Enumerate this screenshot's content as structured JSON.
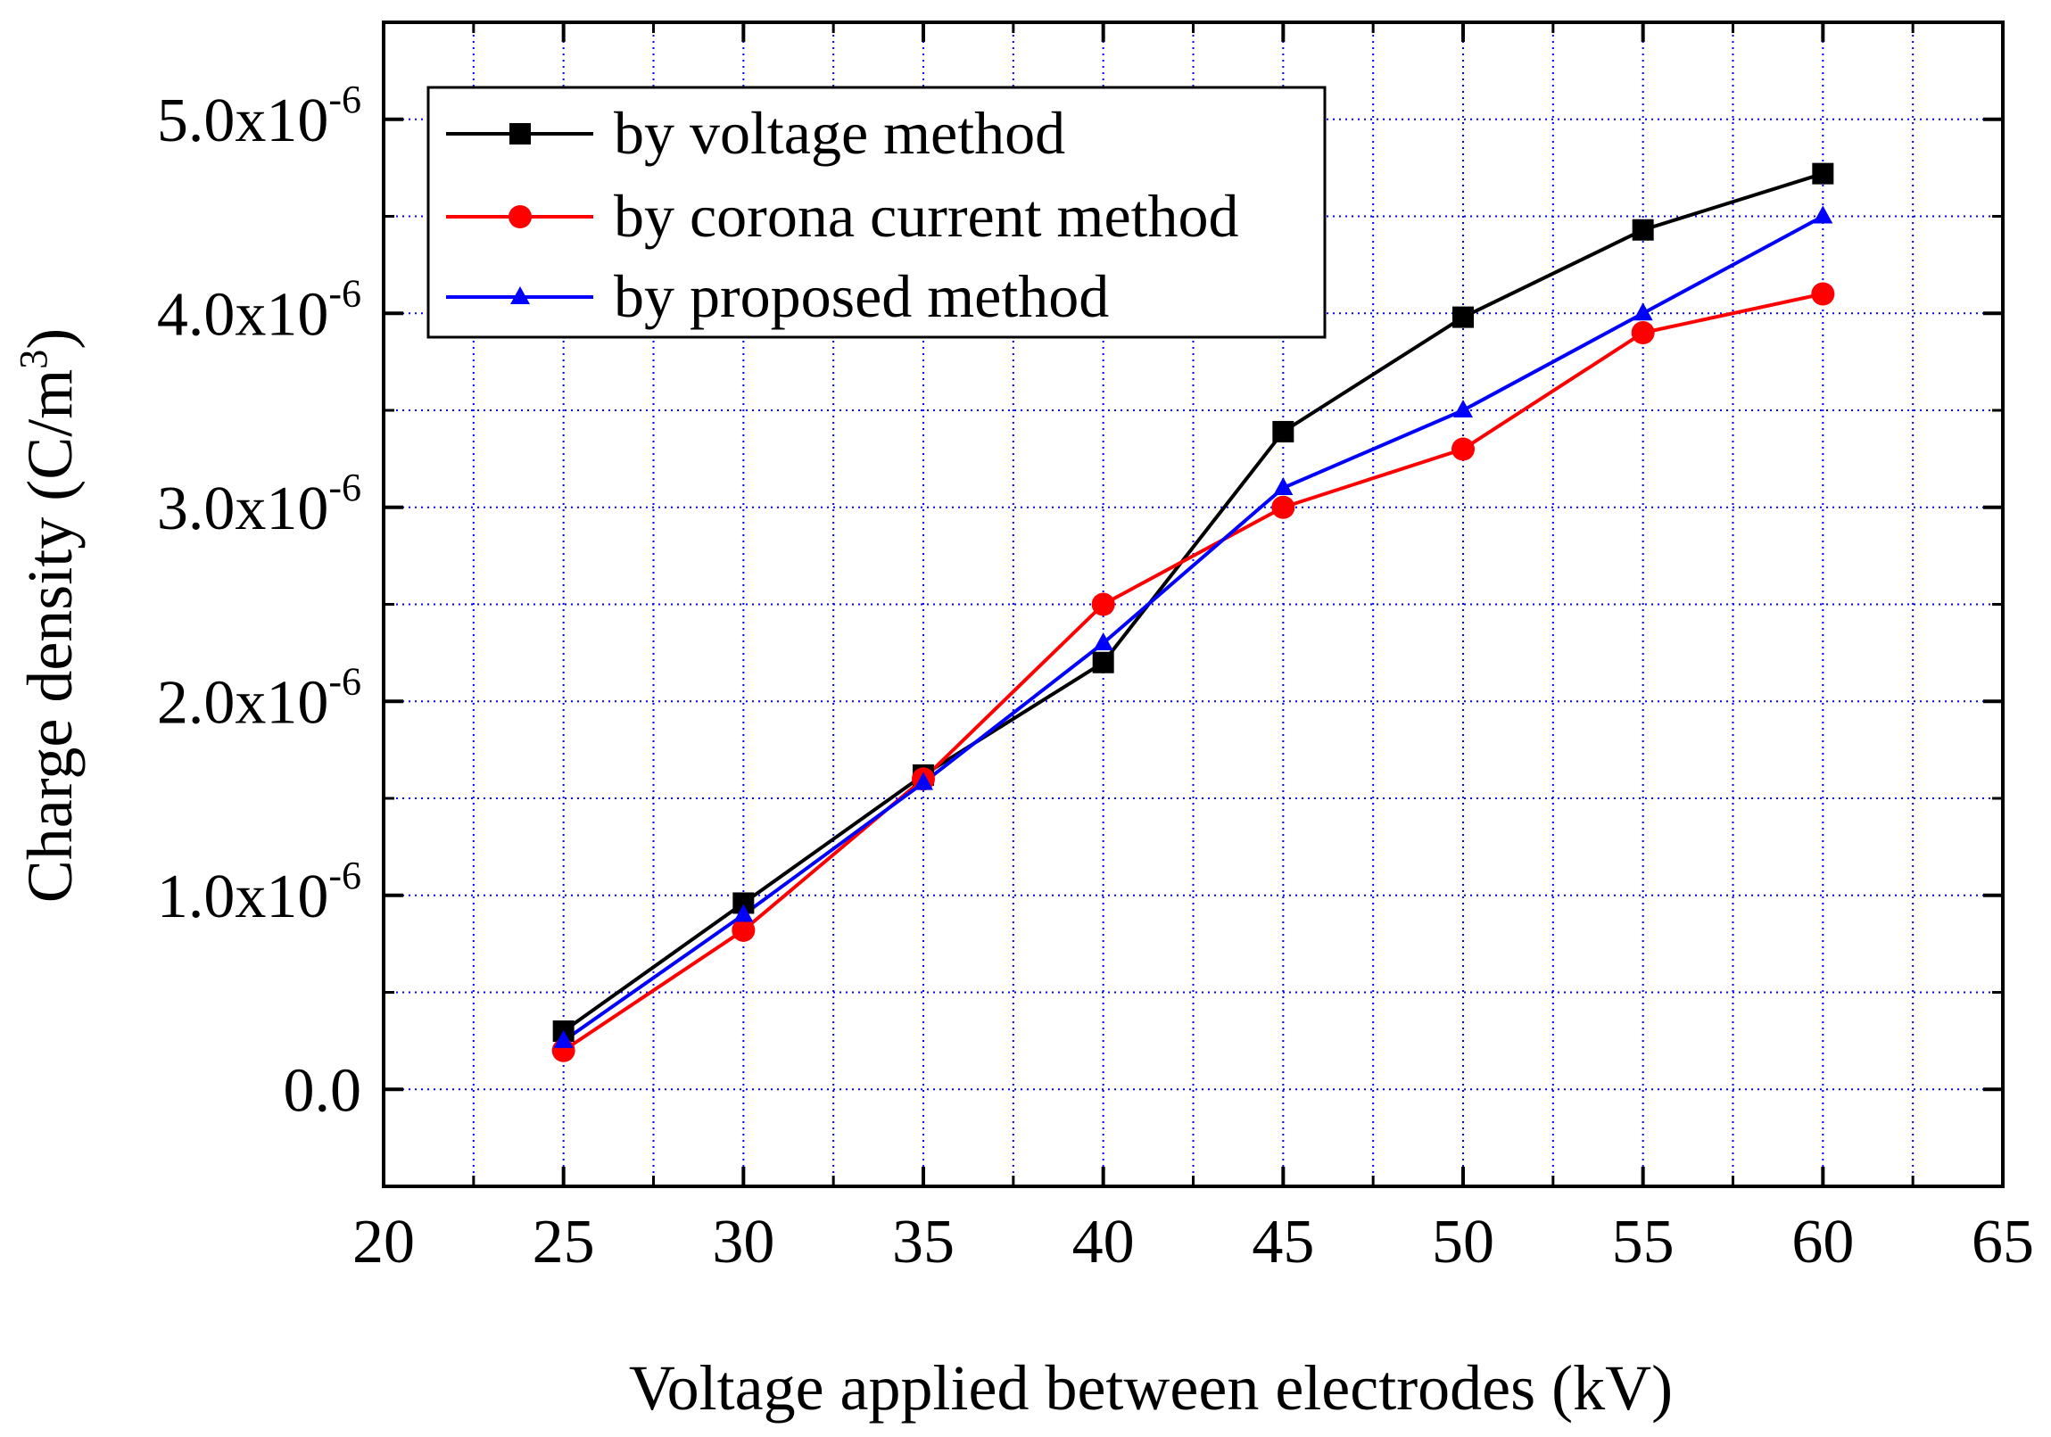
{
  "chart_data": {
    "type": "line",
    "xlabel": "Voltage applied between electrodes (kV)",
    "ylabel_main": "Charge density (C/m",
    "ylabel_exp": "3",
    "ylabel_close": ")",
    "xlim": [
      20,
      65
    ],
    "ylim": [
      -5e-07,
      5.5e-06
    ],
    "x_ticks": [
      20,
      25,
      30,
      35,
      40,
      45,
      50,
      55,
      60,
      65
    ],
    "x_tick_labels": [
      "20",
      "25",
      "30",
      "35",
      "40",
      "45",
      "50",
      "55",
      "60",
      "65"
    ],
    "x_minor_ticks": [
      22.5,
      27.5,
      32.5,
      37.5,
      42.5,
      47.5,
      52.5,
      57.5,
      62.5
    ],
    "y_ticks": [
      0,
      1e-06,
      2e-06,
      3e-06,
      4e-06,
      5e-06
    ],
    "y_tick_labels": [
      {
        "mant": "0.0",
        "exp": ""
      },
      {
        "mant": "1.0x10",
        "exp": "-6"
      },
      {
        "mant": "2.0x10",
        "exp": "-6"
      },
      {
        "mant": "3.0x10",
        "exp": "-6"
      },
      {
        "mant": "4.0x10",
        "exp": "-6"
      },
      {
        "mant": "5.0x10",
        "exp": "-6"
      }
    ],
    "y_minor_ticks": [
      -5e-07,
      5e-07,
      1.5e-06,
      2.5e-06,
      3.5e-06,
      4.5e-06
    ],
    "grid": true,
    "legend_position": "top-left",
    "x": [
      25,
      30,
      35,
      40,
      45,
      50,
      55,
      60
    ],
    "series": [
      {
        "name": "by voltage method",
        "color": "#000000",
        "marker": "square",
        "values": [
          3e-07,
          9.6e-07,
          1.62e-06,
          2.2e-06,
          3.39e-06,
          3.98e-06,
          4.43e-06,
          4.72e-06
        ]
      },
      {
        "name": "by corona current method",
        "color": "#ff0000",
        "marker": "circle",
        "values": [
          2e-07,
          8.2e-07,
          1.6e-06,
          2.5e-06,
          3e-06,
          3.3e-06,
          3.9e-06,
          4.1e-06
        ]
      },
      {
        "name": "by proposed method",
        "color": "#0000ff",
        "marker": "triangle",
        "values": [
          2.5e-07,
          9e-07,
          1.58e-06,
          2.3e-06,
          3.1e-06,
          3.5e-06,
          4e-06,
          4.5e-06
        ]
      }
    ],
    "colors": {
      "grid": "#0000ff",
      "axis": "#000000"
    }
  }
}
